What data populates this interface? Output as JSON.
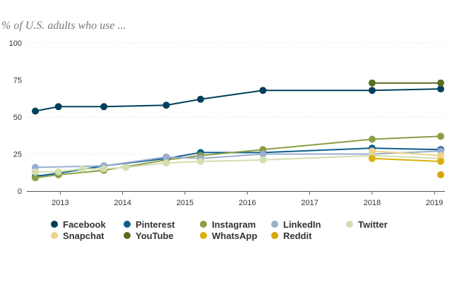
{
  "chart_data": {
    "type": "line",
    "title": "",
    "subtitle": "% of U.S. adults who use ...",
    "xlabel": "",
    "ylabel": "",
    "xlim": [
      2012.6,
      2019.1
    ],
    "ylim": [
      0,
      100
    ],
    "x_ticks": [
      2013,
      2014,
      2015,
      2016,
      2017,
      2018,
      2019
    ],
    "y_ticks": [
      0,
      25,
      50,
      75,
      100
    ],
    "grid": "horizontal",
    "legend_position": "bottom",
    "series": [
      {
        "name": "Facebook",
        "color": "#003f5c",
        "points": [
          [
            2012.6,
            54
          ],
          [
            2012.97,
            57
          ],
          [
            2013.7,
            57
          ],
          [
            2014.7,
            58
          ],
          [
            2015.25,
            62
          ],
          [
            2016.25,
            68
          ],
          [
            2018.0,
            68
          ],
          [
            2019.1,
            69
          ]
        ]
      },
      {
        "name": "Pinterest",
        "color": "#0b5e8e",
        "points": [
          [
            2012.6,
            10
          ],
          [
            2012.97,
            12
          ],
          [
            2013.7,
            17
          ],
          [
            2014.7,
            22
          ],
          [
            2015.25,
            26
          ],
          [
            2016.25,
            26
          ],
          [
            2018.0,
            29
          ],
          [
            2019.1,
            28
          ]
        ]
      },
      {
        "name": "Instagram",
        "color": "#8a9e45",
        "points": [
          [
            2012.6,
            9
          ],
          [
            2012.97,
            11
          ],
          [
            2013.7,
            14
          ],
          [
            2014.7,
            21
          ],
          [
            2015.25,
            24
          ],
          [
            2016.25,
            28
          ],
          [
            2018.0,
            35
          ],
          [
            2019.1,
            37
          ]
        ]
      },
      {
        "name": "LinkedIn",
        "color": "#9aaecf",
        "points": [
          [
            2012.6,
            16
          ],
          [
            2013.7,
            17
          ],
          [
            2014.7,
            23
          ],
          [
            2015.25,
            22
          ],
          [
            2016.25,
            25
          ],
          [
            2018.0,
            25
          ],
          [
            2019.1,
            27
          ]
        ]
      },
      {
        "name": "Twitter",
        "color": "#d3deaf",
        "points": [
          [
            2012.6,
            13
          ],
          [
            2012.97,
            13
          ],
          [
            2013.35,
            15
          ],
          [
            2013.7,
            15
          ],
          [
            2014.05,
            16
          ],
          [
            2014.7,
            19
          ],
          [
            2015.25,
            20
          ],
          [
            2016.25,
            21
          ],
          [
            2018.0,
            24
          ],
          [
            2019.1,
            22
          ]
        ]
      },
      {
        "name": "Snapchat",
        "color": "#ecd48c",
        "points": [
          [
            2018.0,
            27
          ],
          [
            2019.1,
            24
          ]
        ]
      },
      {
        "name": "YouTube",
        "color": "#5a6e22",
        "points": [
          [
            2018.0,
            73
          ],
          [
            2019.1,
            73
          ]
        ]
      },
      {
        "name": "WhatsApp",
        "color": "#d8b10a",
        "points": [
          [
            2018.0,
            22
          ],
          [
            2019.1,
            20
          ]
        ]
      },
      {
        "name": "Reddit",
        "color": "#d8a50a",
        "points": [
          [
            2019.1,
            11
          ]
        ]
      }
    ]
  }
}
